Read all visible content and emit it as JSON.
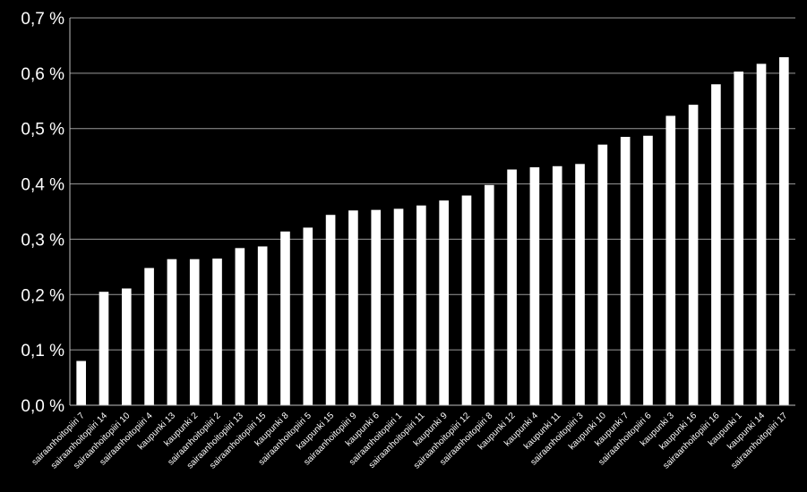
{
  "chart_data": {
    "type": "bar",
    "title": "",
    "xlabel": "",
    "ylabel": "",
    "ylim": [
      0,
      0.7
    ],
    "grid": true,
    "legend": "none",
    "y_ticks": [
      "0,0 %",
      "0,1 %",
      "0,2 %",
      "0,3 %",
      "0,4 %",
      "0,5 %",
      "0,6 %",
      "0,7 %"
    ],
    "categories": [
      "sairaanhoitopiiri 7",
      "sairaanhoitopiiri 14",
      "sairaanhoitopiiri 10",
      "sairaanhoitopiiri 4",
      "kaupunki 13",
      "kaupunki 2",
      "sairaanhoitopiiri 2",
      "sairaanhoitopiiri 13",
      "sairaanhoitopiiri 15",
      "kaupunki 8",
      "sairaanhoitopiiri 5",
      "kaupunki 15",
      "sairaanhoitopiiri 9",
      "kaupunki 6",
      "sairaanhoitopiiri 1",
      "sairaanhoitopiiri 11",
      "kaupunki 9",
      "sairaanhoitopiiri 12",
      "sairaanhoitopiiri 8",
      "kaupunki 12",
      "kaupunki 4",
      "kaupunki 11",
      "sairaanhoitopiiri 3",
      "kaupunki 10",
      "kaupunki 7",
      "sairaanhoitopiiri 6",
      "kaupunki 3",
      "kaupunki 16",
      "sairaanhoitopiiri 16",
      "kaupunki 1",
      "kaupunki 14",
      "sairaanhoitopiiri 17"
    ],
    "values": [
      0.08,
      0.205,
      0.211,
      0.248,
      0.264,
      0.264,
      0.265,
      0.284,
      0.287,
      0.314,
      0.321,
      0.344,
      0.352,
      0.353,
      0.355,
      0.361,
      0.37,
      0.379,
      0.398,
      0.426,
      0.43,
      0.432,
      0.436,
      0.471,
      0.485,
      0.487,
      0.523,
      0.543,
      0.58,
      0.603,
      0.617,
      0.629
    ],
    "colors": {
      "background": "#000000",
      "bar": "#ffffff",
      "grid": "#9a9a9a",
      "axis": "#bfbfbf",
      "text": "#ffffff"
    }
  }
}
